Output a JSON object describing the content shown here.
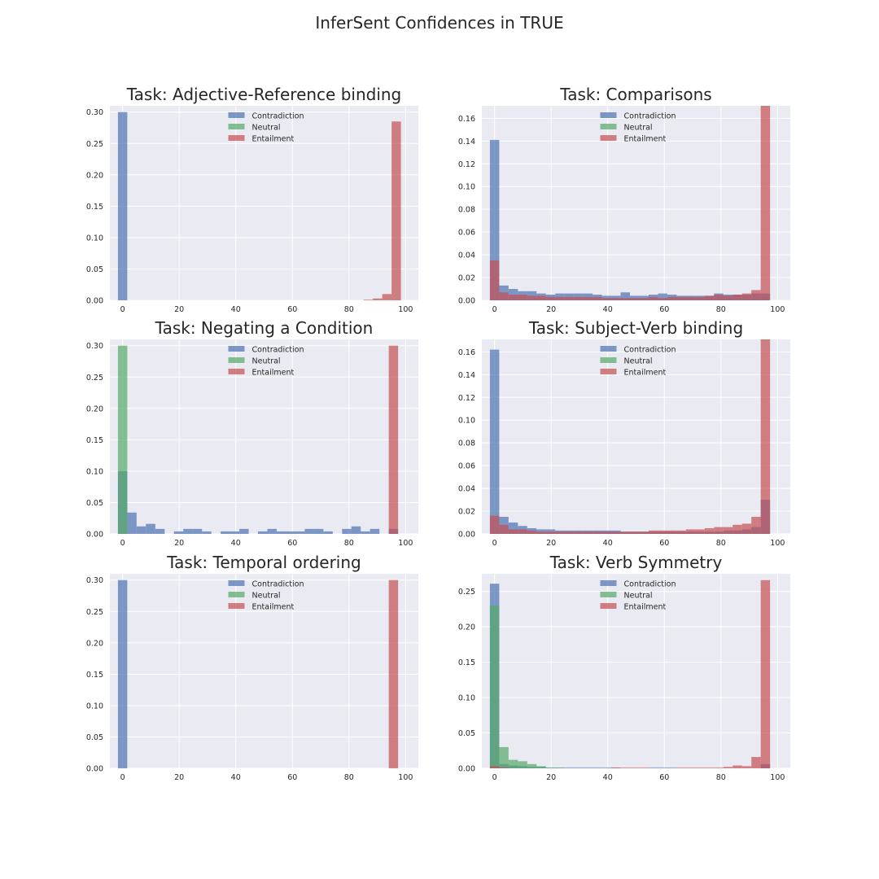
{
  "suptitle": "InferSent Confidences in TRUE",
  "chart_data": [
    {
      "type": "bar",
      "title": "Task: Adjective-Reference binding",
      "bin_width": 3.3,
      "xlim": [
        -4.5,
        104.5
      ],
      "xticks": [
        0,
        20,
        40,
        60,
        80,
        100
      ],
      "ylim": [
        0,
        0.31
      ],
      "yticks": [
        "0.00",
        "0.05",
        "0.10",
        "0.15",
        "0.20",
        "0.25",
        "0.30"
      ],
      "legend": "upper center",
      "series": [
        {
          "name": "Contradiction",
          "color": "#4c72b0",
          "bins": [
            [
              0,
              0.3
            ]
          ]
        },
        {
          "name": "Neutral",
          "color": "#55a868",
          "bins": []
        },
        {
          "name": "Entailment",
          "color": "#c44e52",
          "bins": [
            [
              86.8,
              0.001
            ],
            [
              90.1,
              0.003
            ],
            [
              93.4,
              0.01
            ],
            [
              96.7,
              0.285
            ]
          ]
        }
      ]
    },
    {
      "type": "bar",
      "title": "Task: Comparisons",
      "bin_width": 3.3,
      "xlim": [
        -4.5,
        104.5
      ],
      "xticks": [
        0,
        20,
        40,
        60,
        80,
        100
      ],
      "ylim": [
        0,
        0.171
      ],
      "yticks": [
        "0.00",
        "0.02",
        "0.04",
        "0.06",
        "0.08",
        "0.10",
        "0.12",
        "0.14",
        "0.16"
      ],
      "legend": "upper center",
      "series": [
        {
          "name": "Contradiction",
          "color": "#4c72b0",
          "bins": [
            [
              0,
              0.141
            ],
            [
              3.3,
              0.013
            ],
            [
              6.6,
              0.01
            ],
            [
              9.9,
              0.008
            ],
            [
              13.2,
              0.008
            ],
            [
              16.5,
              0.006
            ],
            [
              19.8,
              0.005
            ],
            [
              23.1,
              0.006
            ],
            [
              26.4,
              0.006
            ],
            [
              29.7,
              0.006
            ],
            [
              33,
              0.006
            ],
            [
              36.3,
              0.005
            ],
            [
              39.6,
              0.004
            ],
            [
              42.9,
              0.004
            ],
            [
              46.2,
              0.007
            ],
            [
              49.5,
              0.004
            ],
            [
              52.8,
              0.004
            ],
            [
              56.1,
              0.005
            ],
            [
              59.4,
              0.006
            ],
            [
              62.7,
              0.005
            ],
            [
              66,
              0.004
            ],
            [
              69.3,
              0.004
            ],
            [
              72.6,
              0.004
            ],
            [
              75.9,
              0.004
            ],
            [
              79.2,
              0.006
            ],
            [
              82.5,
              0.005
            ],
            [
              85.8,
              0.005
            ],
            [
              89.1,
              0.005
            ],
            [
              92.4,
              0.006
            ],
            [
              95.7,
              0.006
            ]
          ]
        },
        {
          "name": "Neutral",
          "color": "#55a868",
          "bins": []
        },
        {
          "name": "Entailment",
          "color": "#c44e52",
          "bins": [
            [
              0,
              0.035
            ],
            [
              3.3,
              0.007
            ],
            [
              6.6,
              0.005
            ],
            [
              9.9,
              0.005
            ],
            [
              13.2,
              0.004
            ],
            [
              16.5,
              0.004
            ],
            [
              19.8,
              0.003
            ],
            [
              23.1,
              0.003
            ],
            [
              26.4,
              0.003
            ],
            [
              29.7,
              0.003
            ],
            [
              33,
              0.003
            ],
            [
              36.3,
              0.003
            ],
            [
              39.6,
              0.002
            ],
            [
              42.9,
              0.002
            ],
            [
              46.2,
              0.002
            ],
            [
              49.5,
              0.002
            ],
            [
              52.8,
              0.002
            ],
            [
              56.1,
              0.003
            ],
            [
              59.4,
              0.002
            ],
            [
              62.7,
              0.003
            ],
            [
              66,
              0.003
            ],
            [
              69.3,
              0.003
            ],
            [
              72.6,
              0.003
            ],
            [
              75.9,
              0.004
            ],
            [
              79.2,
              0.005
            ],
            [
              82.5,
              0.004
            ],
            [
              85.8,
              0.005
            ],
            [
              89.1,
              0.006
            ],
            [
              92.4,
              0.009
            ],
            [
              95.7,
              0.171
            ]
          ]
        }
      ]
    },
    {
      "type": "bar",
      "title": "Task: Negating a Condition",
      "bin_width": 3.3,
      "xlim": [
        -4.5,
        104.5
      ],
      "xticks": [
        0,
        20,
        40,
        60,
        80,
        100
      ],
      "ylim": [
        0,
        0.31
      ],
      "yticks": [
        "0.00",
        "0.05",
        "0.10",
        "0.15",
        "0.20",
        "0.25",
        "0.30"
      ],
      "legend": "upper center",
      "series": [
        {
          "name": "Contradiction",
          "color": "#4c72b0",
          "bins": [
            [
              0,
              0.1
            ],
            [
              3.3,
              0.034
            ],
            [
              6.6,
              0.012
            ],
            [
              9.9,
              0.016
            ],
            [
              13.2,
              0.008
            ],
            [
              19.8,
              0.004
            ],
            [
              23.1,
              0.008
            ],
            [
              26.4,
              0.008
            ],
            [
              29.7,
              0.004
            ],
            [
              36.3,
              0.004
            ],
            [
              39.6,
              0.004
            ],
            [
              42.9,
              0.008
            ],
            [
              49.5,
              0.004
            ],
            [
              52.8,
              0.008
            ],
            [
              56.1,
              0.004
            ],
            [
              59.4,
              0.004
            ],
            [
              62.7,
              0.004
            ],
            [
              66,
              0.008
            ],
            [
              69.3,
              0.008
            ],
            [
              72.6,
              0.004
            ],
            [
              79.2,
              0.008
            ],
            [
              82.5,
              0.012
            ],
            [
              85.8,
              0.004
            ],
            [
              89.1,
              0.008
            ],
            [
              95.7,
              0.008
            ]
          ]
        },
        {
          "name": "Neutral",
          "color": "#55a868",
          "bins": [
            [
              0,
              0.3
            ]
          ]
        },
        {
          "name": "Entailment",
          "color": "#c44e52",
          "bins": [
            [
              95.7,
              0.3
            ]
          ]
        }
      ]
    },
    {
      "type": "bar",
      "title": "Task: Subject-Verb binding",
      "bin_width": 3.3,
      "xlim": [
        -4.5,
        104.5
      ],
      "xticks": [
        0,
        20,
        40,
        60,
        80,
        100
      ],
      "ylim": [
        0,
        0.171
      ],
      "yticks": [
        "0.00",
        "0.02",
        "0.04",
        "0.06",
        "0.08",
        "0.10",
        "0.12",
        "0.14",
        "0.16"
      ],
      "legend": "upper center",
      "series": [
        {
          "name": "Contradiction",
          "color": "#4c72b0",
          "bins": [
            [
              0,
              0.162
            ],
            [
              3.3,
              0.015
            ],
            [
              6.6,
              0.01
            ],
            [
              9.9,
              0.007
            ],
            [
              13.2,
              0.005
            ],
            [
              16.5,
              0.004
            ],
            [
              19.8,
              0.004
            ],
            [
              23.1,
              0.003
            ],
            [
              26.4,
              0.003
            ],
            [
              29.7,
              0.003
            ],
            [
              33,
              0.003
            ],
            [
              36.3,
              0.003
            ],
            [
              39.6,
              0.003
            ],
            [
              42.9,
              0.003
            ],
            [
              46.2,
              0.002
            ],
            [
              49.5,
              0.002
            ],
            [
              52.8,
              0.002
            ],
            [
              56.1,
              0.002
            ],
            [
              59.4,
              0.002
            ],
            [
              62.7,
              0.002
            ],
            [
              66,
              0.002
            ],
            [
              69.3,
              0.002
            ],
            [
              72.6,
              0.002
            ],
            [
              75.9,
              0.002
            ],
            [
              79.2,
              0.002
            ],
            [
              82.5,
              0.003
            ],
            [
              85.8,
              0.003
            ],
            [
              89.1,
              0.004
            ],
            [
              92.4,
              0.006
            ],
            [
              95.7,
              0.03
            ]
          ]
        },
        {
          "name": "Neutral",
          "color": "#55a868",
          "bins": []
        },
        {
          "name": "Entailment",
          "color": "#c44e52",
          "bins": [
            [
              0,
              0.016
            ],
            [
              3.3,
              0.008
            ],
            [
              6.6,
              0.004
            ],
            [
              9.9,
              0.004
            ],
            [
              13.2,
              0.003
            ],
            [
              16.5,
              0.002
            ],
            [
              19.8,
              0.002
            ],
            [
              23.1,
              0.002
            ],
            [
              26.4,
              0.002
            ],
            [
              29.7,
              0.002
            ],
            [
              33,
              0.002
            ],
            [
              36.3,
              0.002
            ],
            [
              39.6,
              0.002
            ],
            [
              42.9,
              0.002
            ],
            [
              46.2,
              0.002
            ],
            [
              49.5,
              0.002
            ],
            [
              52.8,
              0.002
            ],
            [
              56.1,
              0.003
            ],
            [
              59.4,
              0.003
            ],
            [
              62.7,
              0.003
            ],
            [
              66,
              0.003
            ],
            [
              69.3,
              0.004
            ],
            [
              72.6,
              0.004
            ],
            [
              75.9,
              0.005
            ],
            [
              79.2,
              0.006
            ],
            [
              82.5,
              0.006
            ],
            [
              85.8,
              0.008
            ],
            [
              89.1,
              0.009
            ],
            [
              92.4,
              0.015
            ],
            [
              95.7,
              0.171
            ]
          ]
        }
      ]
    },
    {
      "type": "bar",
      "title": "Task: Temporal ordering",
      "bin_width": 3.3,
      "xlim": [
        -4.5,
        104.5
      ],
      "xticks": [
        0,
        20,
        40,
        60,
        80,
        100
      ],
      "ylim": [
        0,
        0.31
      ],
      "yticks": [
        "0.00",
        "0.05",
        "0.10",
        "0.15",
        "0.20",
        "0.25",
        "0.30"
      ],
      "legend": "upper center",
      "series": [
        {
          "name": "Contradiction",
          "color": "#4c72b0",
          "bins": [
            [
              0,
              0.3
            ]
          ]
        },
        {
          "name": "Neutral",
          "color": "#55a868",
          "bins": []
        },
        {
          "name": "Entailment",
          "color": "#c44e52",
          "bins": [
            [
              95.7,
              0.3
            ]
          ]
        }
      ]
    },
    {
      "type": "bar",
      "title": "Task: Verb Symmetry",
      "bin_width": 3.3,
      "xlim": [
        -4.5,
        104.5
      ],
      "xticks": [
        0,
        20,
        40,
        60,
        80,
        100
      ],
      "ylim": [
        0,
        0.275
      ],
      "yticks": [
        "0.00",
        "0.05",
        "0.10",
        "0.15",
        "0.20",
        "0.25"
      ],
      "legend": "upper center",
      "series": [
        {
          "name": "Contradiction",
          "color": "#4c72b0",
          "bins": [
            [
              0,
              0.261
            ],
            [
              3.3,
              0.006
            ],
            [
              6.6,
              0.004
            ],
            [
              9.9,
              0.003
            ],
            [
              13.2,
              0.002
            ],
            [
              16.5,
              0.002
            ],
            [
              19.8,
              0.001
            ],
            [
              23.1,
              0.001
            ],
            [
              26.4,
              0.001
            ],
            [
              29.7,
              0.001
            ],
            [
              33,
              0.001
            ],
            [
              36.3,
              0.001
            ],
            [
              39.6,
              0.001
            ],
            [
              42.9,
              0.001
            ],
            [
              56.1,
              0.001
            ],
            [
              59.4,
              0.001
            ],
            [
              62.7,
              0.001
            ],
            [
              95.7,
              0.006
            ]
          ]
        },
        {
          "name": "Neutral",
          "color": "#55a868",
          "bins": [
            [
              0,
              0.23
            ],
            [
              3.3,
              0.03
            ],
            [
              6.6,
              0.012
            ],
            [
              9.9,
              0.01
            ],
            [
              13.2,
              0.006
            ],
            [
              16.5,
              0.003
            ],
            [
              19.8,
              0.001
            ],
            [
              23.1,
              0.001
            ]
          ]
        },
        {
          "name": "Entailment",
          "color": "#c44e52",
          "bins": [
            [
              0,
              0.003
            ],
            [
              3.3,
              0.001
            ],
            [
              42.9,
              0.001
            ],
            [
              46.2,
              0.001
            ],
            [
              49.5,
              0.001
            ],
            [
              52.8,
              0.001
            ],
            [
              66,
              0.001
            ],
            [
              69.3,
              0.001
            ],
            [
              72.6,
              0.001
            ],
            [
              75.9,
              0.001
            ],
            [
              79.2,
              0.001
            ],
            [
              82.5,
              0.002
            ],
            [
              85.8,
              0.004
            ],
            [
              89.1,
              0.003
            ],
            [
              92.4,
              0.016
            ],
            [
              95.7,
              0.266
            ]
          ]
        }
      ]
    }
  ]
}
